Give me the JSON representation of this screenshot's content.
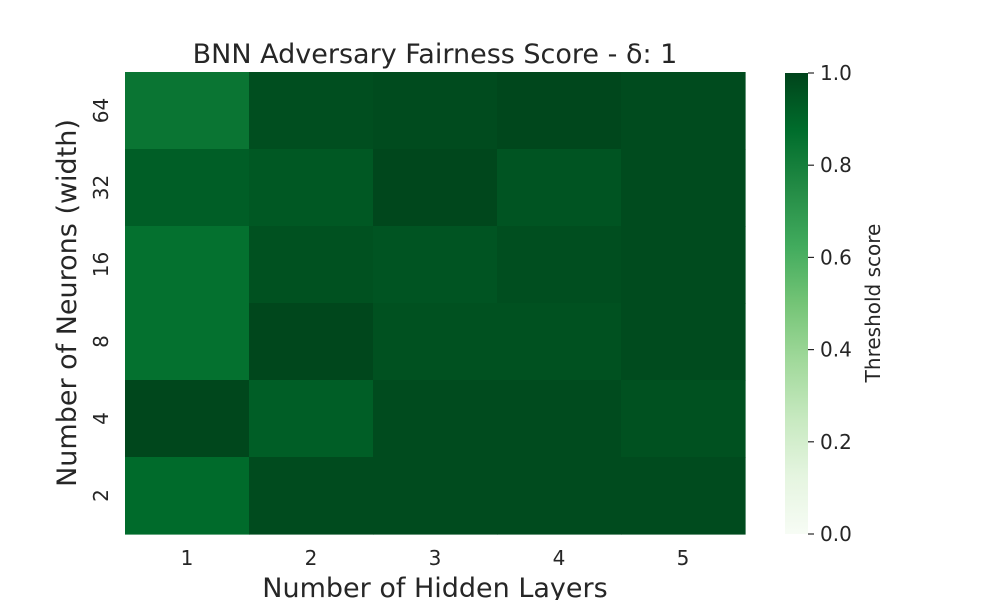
{
  "chart_data": {
    "type": "heatmap",
    "title": "BNN Adversary Fairness Score - δ: 1",
    "xlabel": "Number of Hidden Layers",
    "ylabel": "Number of Neurons (width)",
    "x_categories": [
      "1",
      "2",
      "3",
      "4",
      "5"
    ],
    "y_categories": [
      "64",
      "32",
      "16",
      "8",
      "4",
      "2"
    ],
    "values": [
      [
        0.84,
        0.97,
        0.98,
        0.99,
        0.98
      ],
      [
        0.92,
        0.94,
        0.99,
        0.95,
        0.98
      ],
      [
        0.86,
        0.96,
        0.95,
        0.97,
        0.98
      ],
      [
        0.86,
        0.99,
        0.96,
        0.96,
        0.98
      ],
      [
        0.99,
        0.92,
        0.98,
        0.98,
        0.96
      ],
      [
        0.88,
        0.98,
        0.98,
        0.98,
        0.98
      ]
    ],
    "vmin": 0.0,
    "vmax": 1.0,
    "colormap": "Greens",
    "colorbar": {
      "label": "Threshold score",
      "ticks": [
        "0.0",
        "0.2",
        "0.4",
        "0.6",
        "0.8",
        "1.0"
      ]
    }
  }
}
